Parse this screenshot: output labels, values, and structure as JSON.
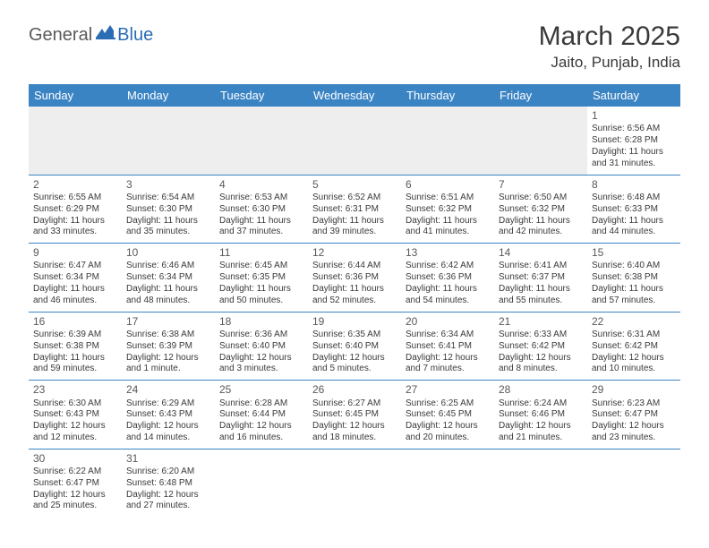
{
  "logo": {
    "general": "General",
    "blue": "Blue"
  },
  "title": "March 2025",
  "location": "Jaito, Punjab, India",
  "colors": {
    "header_bg": "#3b84c4",
    "header_text": "#ffffff",
    "cell_border": "#3b84c4",
    "blank_bg": "#eeeeee",
    "text": "#3a3a3a",
    "logo_gray": "#5a5a5a",
    "logo_blue": "#2a6db5"
  },
  "day_headers": [
    "Sunday",
    "Monday",
    "Tuesday",
    "Wednesday",
    "Thursday",
    "Friday",
    "Saturday"
  ],
  "weeks": [
    [
      null,
      null,
      null,
      null,
      null,
      null,
      {
        "d": "1",
        "sr": "6:56 AM",
        "ss": "6:28 PM",
        "dl": "11 hours and 31 minutes."
      }
    ],
    [
      {
        "d": "2",
        "sr": "6:55 AM",
        "ss": "6:29 PM",
        "dl": "11 hours and 33 minutes."
      },
      {
        "d": "3",
        "sr": "6:54 AM",
        "ss": "6:30 PM",
        "dl": "11 hours and 35 minutes."
      },
      {
        "d": "4",
        "sr": "6:53 AM",
        "ss": "6:30 PM",
        "dl": "11 hours and 37 minutes."
      },
      {
        "d": "5",
        "sr": "6:52 AM",
        "ss": "6:31 PM",
        "dl": "11 hours and 39 minutes."
      },
      {
        "d": "6",
        "sr": "6:51 AM",
        "ss": "6:32 PM",
        "dl": "11 hours and 41 minutes."
      },
      {
        "d": "7",
        "sr": "6:50 AM",
        "ss": "6:32 PM",
        "dl": "11 hours and 42 minutes."
      },
      {
        "d": "8",
        "sr": "6:48 AM",
        "ss": "6:33 PM",
        "dl": "11 hours and 44 minutes."
      }
    ],
    [
      {
        "d": "9",
        "sr": "6:47 AM",
        "ss": "6:34 PM",
        "dl": "11 hours and 46 minutes."
      },
      {
        "d": "10",
        "sr": "6:46 AM",
        "ss": "6:34 PM",
        "dl": "11 hours and 48 minutes."
      },
      {
        "d": "11",
        "sr": "6:45 AM",
        "ss": "6:35 PM",
        "dl": "11 hours and 50 minutes."
      },
      {
        "d": "12",
        "sr": "6:44 AM",
        "ss": "6:36 PM",
        "dl": "11 hours and 52 minutes."
      },
      {
        "d": "13",
        "sr": "6:42 AM",
        "ss": "6:36 PM",
        "dl": "11 hours and 54 minutes."
      },
      {
        "d": "14",
        "sr": "6:41 AM",
        "ss": "6:37 PM",
        "dl": "11 hours and 55 minutes."
      },
      {
        "d": "15",
        "sr": "6:40 AM",
        "ss": "6:38 PM",
        "dl": "11 hours and 57 minutes."
      }
    ],
    [
      {
        "d": "16",
        "sr": "6:39 AM",
        "ss": "6:38 PM",
        "dl": "11 hours and 59 minutes."
      },
      {
        "d": "17",
        "sr": "6:38 AM",
        "ss": "6:39 PM",
        "dl": "12 hours and 1 minute."
      },
      {
        "d": "18",
        "sr": "6:36 AM",
        "ss": "6:40 PM",
        "dl": "12 hours and 3 minutes."
      },
      {
        "d": "19",
        "sr": "6:35 AM",
        "ss": "6:40 PM",
        "dl": "12 hours and 5 minutes."
      },
      {
        "d": "20",
        "sr": "6:34 AM",
        "ss": "6:41 PM",
        "dl": "12 hours and 7 minutes."
      },
      {
        "d": "21",
        "sr": "6:33 AM",
        "ss": "6:42 PM",
        "dl": "12 hours and 8 minutes."
      },
      {
        "d": "22",
        "sr": "6:31 AM",
        "ss": "6:42 PM",
        "dl": "12 hours and 10 minutes."
      }
    ],
    [
      {
        "d": "23",
        "sr": "6:30 AM",
        "ss": "6:43 PM",
        "dl": "12 hours and 12 minutes."
      },
      {
        "d": "24",
        "sr": "6:29 AM",
        "ss": "6:43 PM",
        "dl": "12 hours and 14 minutes."
      },
      {
        "d": "25",
        "sr": "6:28 AM",
        "ss": "6:44 PM",
        "dl": "12 hours and 16 minutes."
      },
      {
        "d": "26",
        "sr": "6:27 AM",
        "ss": "6:45 PM",
        "dl": "12 hours and 18 minutes."
      },
      {
        "d": "27",
        "sr": "6:25 AM",
        "ss": "6:45 PM",
        "dl": "12 hours and 20 minutes."
      },
      {
        "d": "28",
        "sr": "6:24 AM",
        "ss": "6:46 PM",
        "dl": "12 hours and 21 minutes."
      },
      {
        "d": "29",
        "sr": "6:23 AM",
        "ss": "6:47 PM",
        "dl": "12 hours and 23 minutes."
      }
    ],
    [
      {
        "d": "30",
        "sr": "6:22 AM",
        "ss": "6:47 PM",
        "dl": "12 hours and 25 minutes."
      },
      {
        "d": "31",
        "sr": "6:20 AM",
        "ss": "6:48 PM",
        "dl": "12 hours and 27 minutes."
      },
      null,
      null,
      null,
      null,
      null
    ]
  ],
  "labels": {
    "sunrise": "Sunrise: ",
    "sunset": "Sunset: ",
    "daylight": "Daylight: "
  }
}
